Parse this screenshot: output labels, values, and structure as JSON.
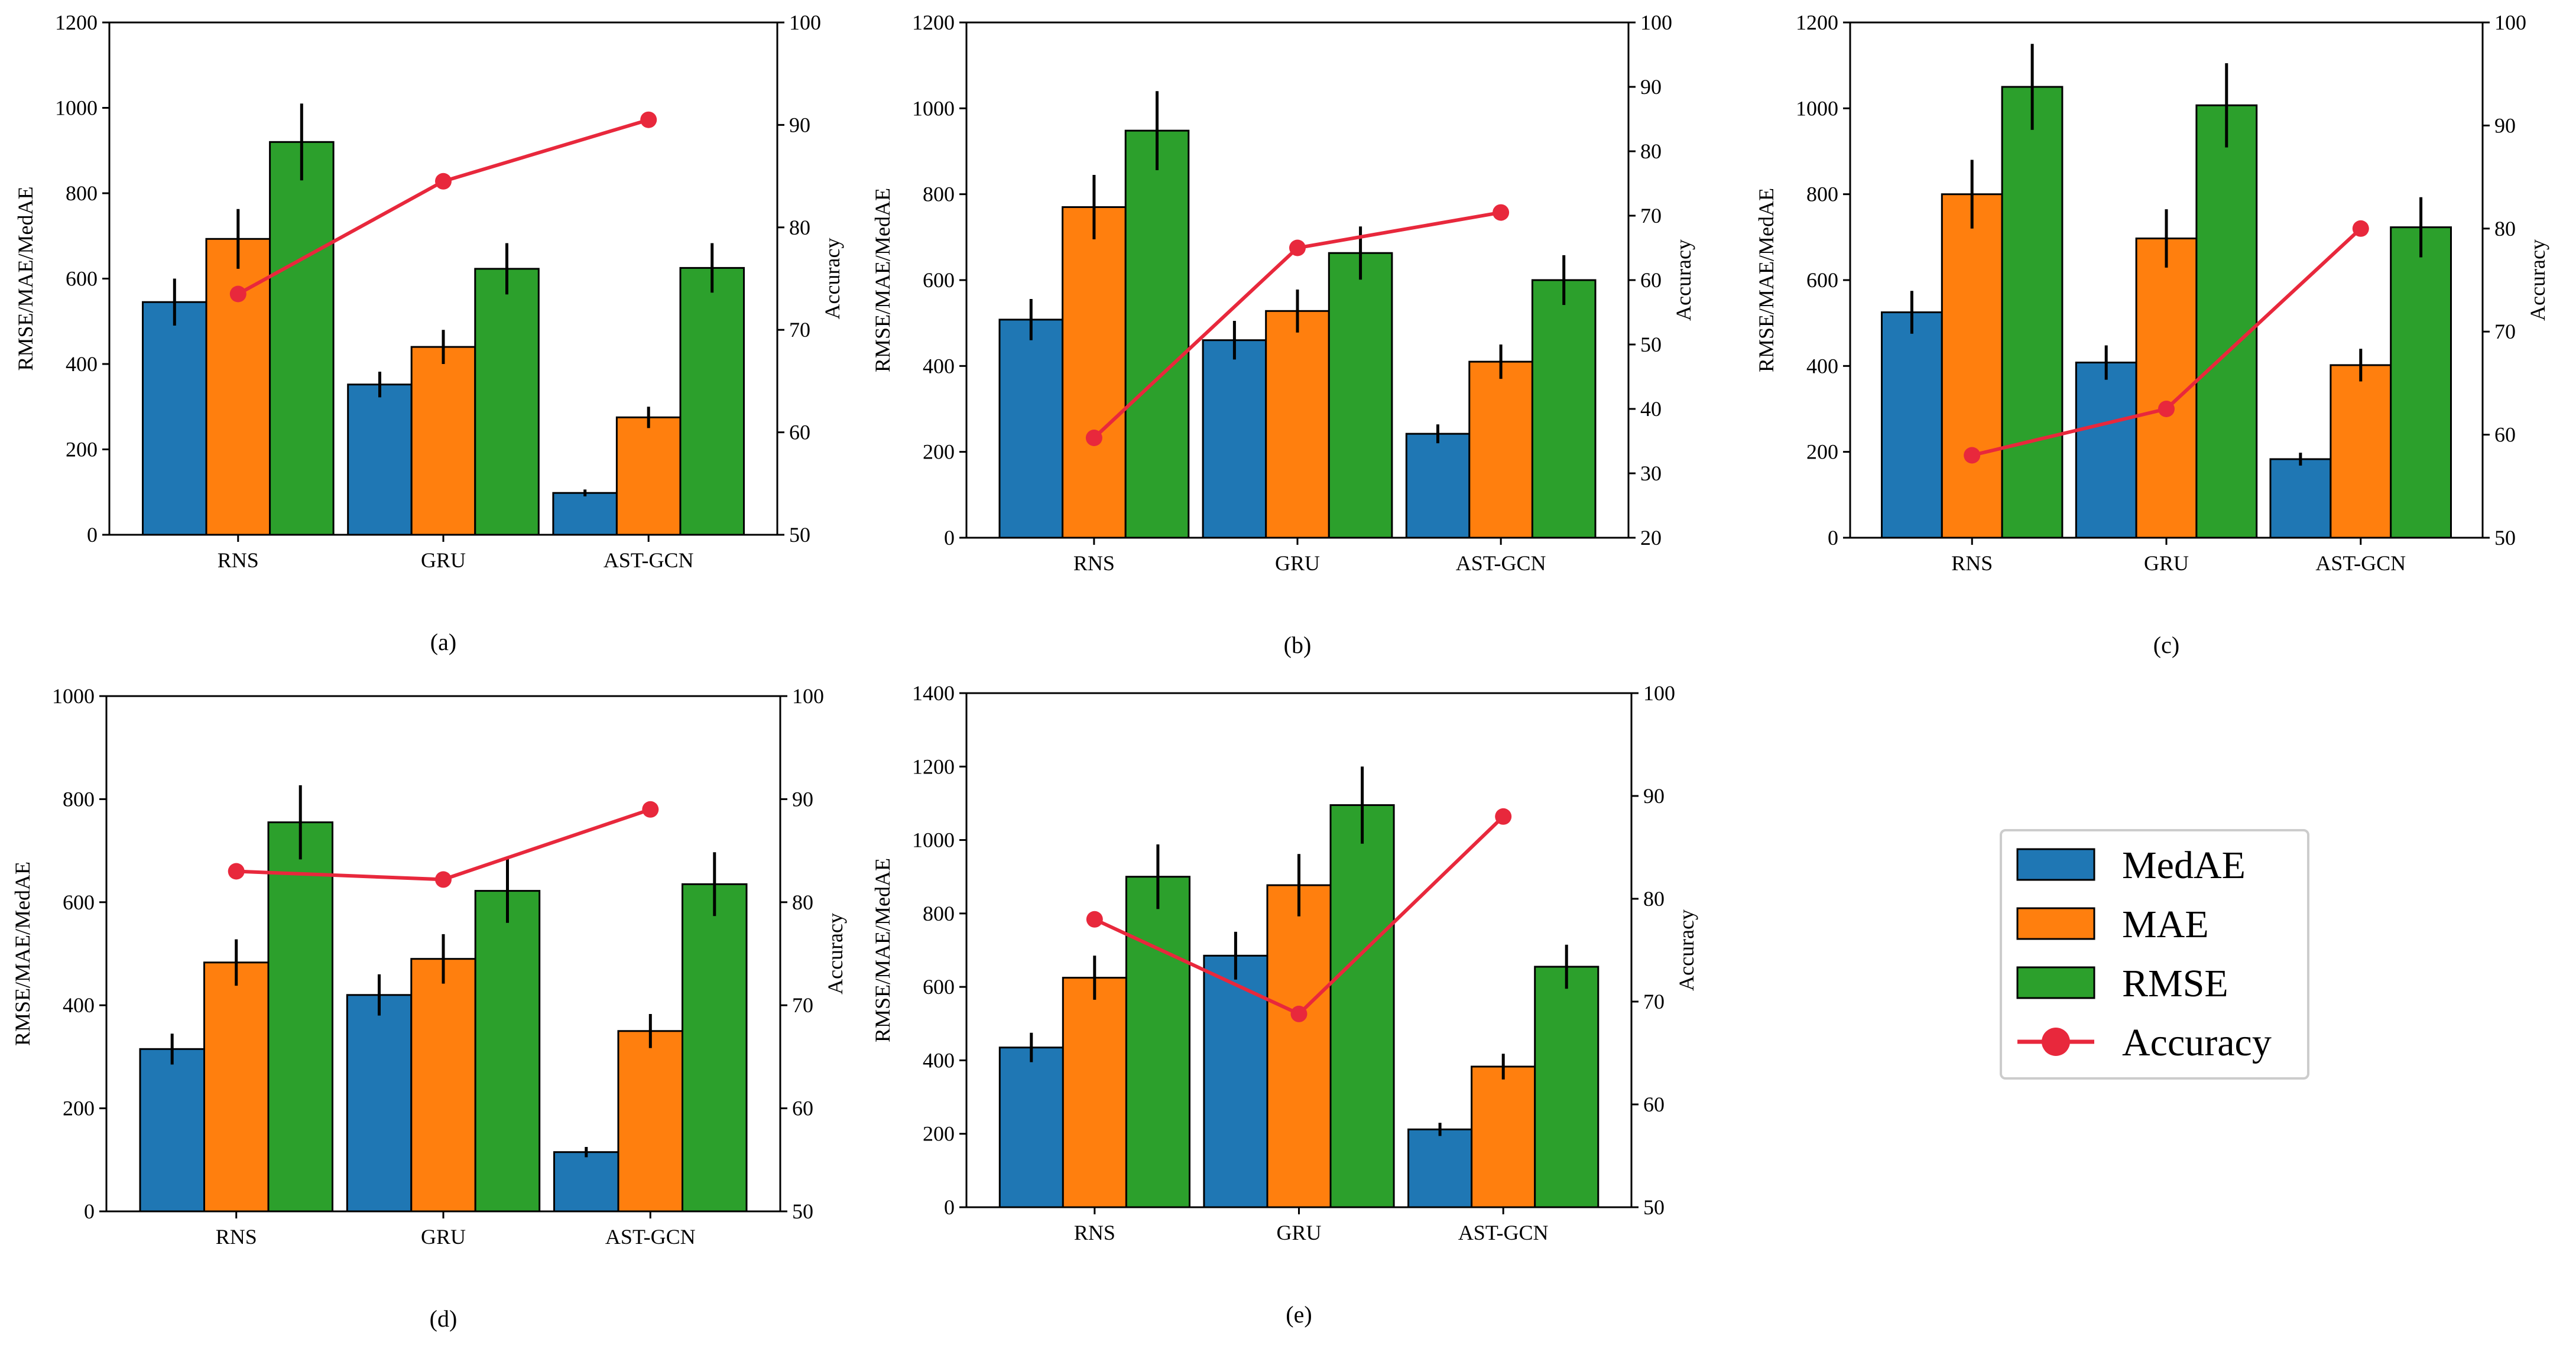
{
  "figure": {
    "legend": {
      "entries": [
        {
          "label": "MedAE",
          "color": "#1f77b4",
          "kind": "bar"
        },
        {
          "label": "MAE",
          "color": "#ff7f0e",
          "kind": "bar"
        },
        {
          "label": "RMSE",
          "color": "#2ca02c",
          "kind": "bar"
        },
        {
          "label": "Accuracy",
          "color": "#e8283c",
          "kind": "line"
        }
      ]
    }
  },
  "chart_data": [
    {
      "type": "bar",
      "caption": "(a)",
      "categories": [
        "RNS",
        "GRU",
        "AST-GCN"
      ],
      "ylabel": "RMSE/MAE/MedAE",
      "y2label": "Accuracy",
      "ylim": [
        0,
        1200
      ],
      "yticks": [
        0,
        200,
        400,
        600,
        800,
        1000,
        1200
      ],
      "y2lim": [
        50,
        100
      ],
      "y2ticks": [
        50,
        60,
        70,
        80,
        90,
        100
      ],
      "series": [
        {
          "name": "MedAE",
          "color": "#1f77b4",
          "values": [
            545,
            352,
            98
          ],
          "errors": [
            55,
            30,
            8
          ]
        },
        {
          "name": "MAE",
          "color": "#ff7f0e",
          "values": [
            693,
            440,
            275
          ],
          "errors": [
            70,
            40,
            25
          ]
        },
        {
          "name": "RMSE",
          "color": "#2ca02c",
          "values": [
            920,
            623,
            625
          ],
          "errors": [
            90,
            60,
            58
          ]
        }
      ],
      "line": {
        "name": "Accuracy",
        "color": "#e8283c",
        "axis": "right",
        "values": [
          73.5,
          84.5,
          90.5
        ]
      }
    },
    {
      "type": "bar",
      "caption": "(b)",
      "categories": [
        "RNS",
        "GRU",
        "AST-GCN"
      ],
      "ylabel": "RMSE/MAE/MedAE",
      "y2label": "Accuracy",
      "ylim": [
        0,
        1200
      ],
      "yticks": [
        0,
        200,
        400,
        600,
        800,
        1000,
        1200
      ],
      "y2lim": [
        20,
        100
      ],
      "y2ticks": [
        20,
        30,
        40,
        50,
        60,
        70,
        80,
        90,
        100
      ],
      "series": [
        {
          "name": "MedAE",
          "color": "#1f77b4",
          "values": [
            508,
            460,
            242
          ],
          "errors": [
            48,
            45,
            22
          ]
        },
        {
          "name": "MAE",
          "color": "#ff7f0e",
          "values": [
            770,
            528,
            410
          ],
          "errors": [
            75,
            50,
            40
          ]
        },
        {
          "name": "RMSE",
          "color": "#2ca02c",
          "values": [
            948,
            663,
            600
          ],
          "errors": [
            92,
            62,
            58
          ]
        }
      ],
      "line": {
        "name": "Accuracy",
        "color": "#e8283c",
        "axis": "right",
        "values": [
          35.5,
          65,
          70.5
        ]
      }
    },
    {
      "type": "bar",
      "caption": "(c)",
      "categories": [
        "RNS",
        "GRU",
        "AST-GCN"
      ],
      "ylabel": "RMSE/MAE/MedAE",
      "y2label": "Accuracy",
      "ylim": [
        0,
        1200
      ],
      "yticks": [
        0,
        200,
        400,
        600,
        800,
        1000,
        1200
      ],
      "y2lim": [
        50,
        100
      ],
      "y2ticks": [
        50,
        60,
        70,
        80,
        90,
        100
      ],
      "series": [
        {
          "name": "MedAE",
          "color": "#1f77b4",
          "values": [
            525,
            408,
            183
          ],
          "errors": [
            50,
            40,
            15
          ]
        },
        {
          "name": "MAE",
          "color": "#ff7f0e",
          "values": [
            800,
            697,
            402
          ],
          "errors": [
            80,
            68,
            38
          ]
        },
        {
          "name": "RMSE",
          "color": "#2ca02c",
          "values": [
            1050,
            1007,
            723
          ],
          "errors": [
            100,
            98,
            70
          ]
        }
      ],
      "line": {
        "name": "Accuracy",
        "color": "#e8283c",
        "axis": "right",
        "values": [
          58,
          62.5,
          80
        ]
      }
    },
    {
      "type": "bar",
      "caption": "(d)",
      "categories": [
        "RNS",
        "GRU",
        "AST-GCN"
      ],
      "ylabel": "RMSE/MAE/MedAE",
      "y2label": "Accuracy",
      "ylim": [
        0,
        1000
      ],
      "yticks": [
        0,
        200,
        400,
        600,
        800,
        1000
      ],
      "y2lim": [
        50,
        100
      ],
      "y2ticks": [
        50,
        60,
        70,
        80,
        90,
        100
      ],
      "series": [
        {
          "name": "MedAE",
          "color": "#1f77b4",
          "values": [
            315,
            420,
            115
          ],
          "errors": [
            30,
            40,
            10
          ]
        },
        {
          "name": "MAE",
          "color": "#ff7f0e",
          "values": [
            483,
            490,
            350
          ],
          "errors": [
            45,
            48,
            33
          ]
        },
        {
          "name": "RMSE",
          "color": "#2ca02c",
          "values": [
            755,
            622,
            635
          ],
          "errors": [
            72,
            62,
            62
          ]
        }
      ],
      "line": {
        "name": "Accuracy",
        "color": "#e8283c",
        "axis": "right",
        "values": [
          83,
          82.2,
          89
        ]
      }
    },
    {
      "type": "bar",
      "caption": "(e)",
      "categories": [
        "RNS",
        "GRU",
        "AST-GCN"
      ],
      "ylabel": "RMSE/MAE/MedAE",
      "y2label": "Accuracy",
      "ylim": [
        0,
        1400
      ],
      "yticks": [
        0,
        200,
        400,
        600,
        800,
        1000,
        1200,
        1400
      ],
      "y2lim": [
        50,
        100
      ],
      "y2ticks": [
        50,
        60,
        70,
        80,
        90,
        100
      ],
      "series": [
        {
          "name": "MedAE",
          "color": "#1f77b4",
          "values": [
            435,
            685,
            212
          ],
          "errors": [
            40,
            65,
            18
          ]
        },
        {
          "name": "MAE",
          "color": "#ff7f0e",
          "values": [
            625,
            877,
            383
          ],
          "errors": [
            60,
            85,
            35
          ]
        },
        {
          "name": "RMSE",
          "color": "#2ca02c",
          "values": [
            900,
            1095,
            655
          ],
          "errors": [
            88,
            105,
            60
          ]
        }
      ],
      "line": {
        "name": "Accuracy",
        "color": "#e8283c",
        "axis": "right",
        "values": [
          78,
          68.8,
          88
        ]
      }
    }
  ]
}
